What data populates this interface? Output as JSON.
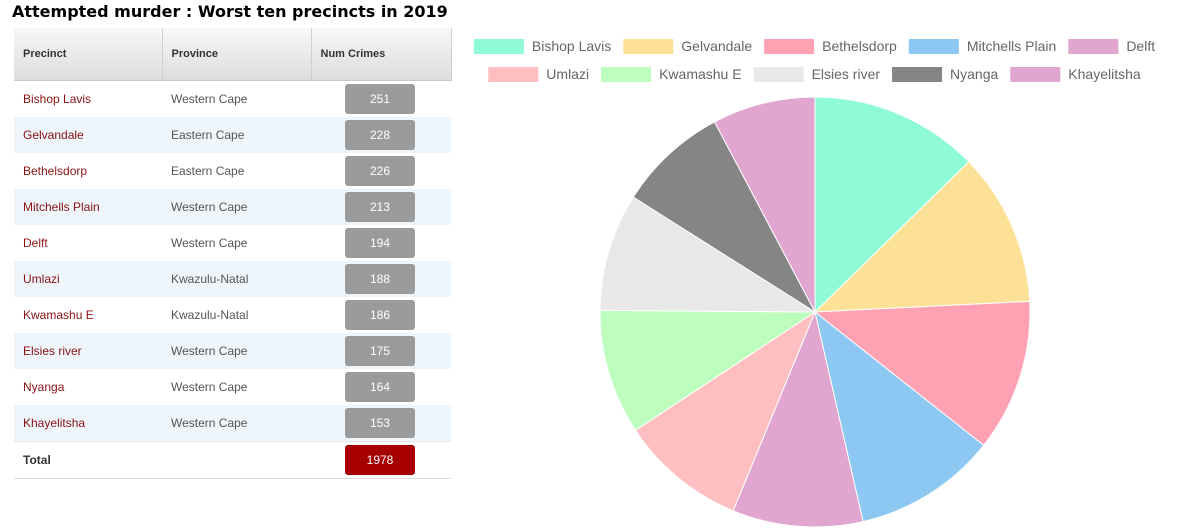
{
  "page": {
    "title": "Attempted murder : Worst ten precincts in 2019"
  },
  "table": {
    "headers": [
      "Precinct",
      "Province",
      "Num Crimes"
    ],
    "rows": [
      {
        "precinct": "Bishop Lavis",
        "province": "Western Cape",
        "crimes": "251"
      },
      {
        "precinct": "Gelvandale",
        "province": "Eastern Cape",
        "crimes": "228"
      },
      {
        "precinct": "Bethelsdorp",
        "province": "Eastern Cape",
        "crimes": "226"
      },
      {
        "precinct": "Mitchells Plain",
        "province": "Western Cape",
        "crimes": "213"
      },
      {
        "precinct": "Delft",
        "province": "Western Cape",
        "crimes": "194"
      },
      {
        "precinct": "Umlazi",
        "province": "Kwazulu-Natal",
        "crimes": "188"
      },
      {
        "precinct": "Kwamashu E",
        "province": "Kwazulu-Natal",
        "crimes": "186"
      },
      {
        "precinct": "Elsies river",
        "province": "Western Cape",
        "crimes": "175"
      },
      {
        "precinct": "Nyanga",
        "province": "Western Cape",
        "crimes": "164"
      },
      {
        "precinct": "Khayelitsha",
        "province": "Western Cape",
        "crimes": "153"
      }
    ],
    "total_label": "Total",
    "total_value": "1978"
  },
  "colors": {
    "badge": "#9b9b9b",
    "total_badge": "#a70000",
    "precinct_text": "#8b1111"
  },
  "chart_data": {
    "type": "pie",
    "title": "",
    "legend_position": "top",
    "categories": [
      "Bishop Lavis",
      "Gelvandale",
      "Bethelsdorp",
      "Mitchells Plain",
      "Delft",
      "Umlazi",
      "Kwamashu E",
      "Elsies river",
      "Nyanga",
      "Khayelitsha"
    ],
    "values": [
      251,
      228,
      226,
      213,
      194,
      188,
      186,
      175,
      164,
      153
    ],
    "colors": [
      "#8ffbd6",
      "#fde197",
      "#fea2b3",
      "#8dc8f2",
      "#e0a6cf",
      "#ffbfc0",
      "#bdfdbd",
      "#e8e8e8",
      "#858585",
      "#e0a6cf"
    ]
  }
}
